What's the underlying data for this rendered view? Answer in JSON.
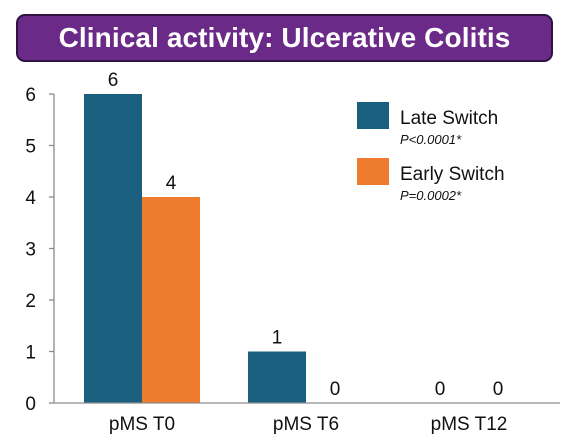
{
  "colors": {
    "banner_bg": "#6b2a88",
    "banner_border": "#2e1240",
    "late_switch": "#1b5f7e",
    "early_switch": "#ef7b2e",
    "axis": "#7f7f7f"
  },
  "chart_data": {
    "type": "bar",
    "title": "Clinical activity: Ulcerative Colitis",
    "xlabel": "",
    "ylabel": "",
    "categories": [
      "pMS T0",
      "pMS T6",
      "pMS T12"
    ],
    "ylim": [
      0,
      6
    ],
    "yticks": [
      0,
      1,
      2,
      3,
      4,
      5,
      6
    ],
    "grid": false,
    "legend_position": "top-right",
    "series": [
      {
        "name": "Late Switch",
        "note": "P<0.0001*",
        "color": "#1b5f7e",
        "values": [
          6,
          1,
          0
        ]
      },
      {
        "name": "Early Switch",
        "note": "P=0.0002*",
        "color": "#ef7b2e",
        "values": [
          4,
          0,
          0
        ]
      }
    ]
  }
}
